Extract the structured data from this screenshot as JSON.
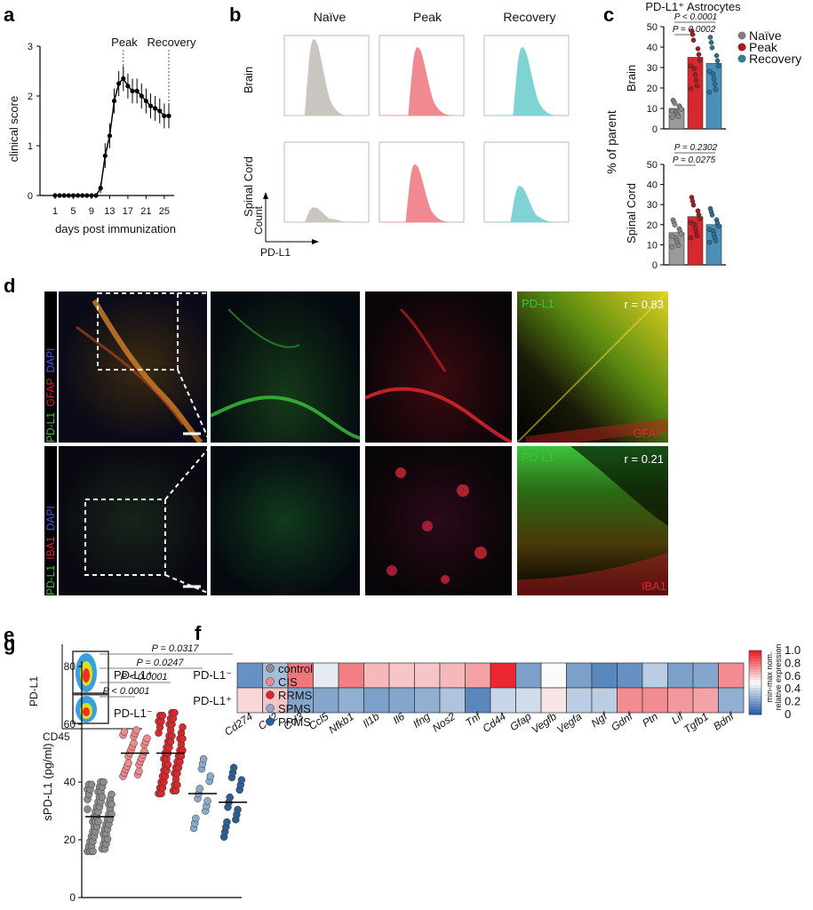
{
  "panel_labels": {
    "a": "a",
    "b": "b",
    "c": "c",
    "d": "d",
    "e": "e",
    "f": "f",
    "g": "g"
  },
  "panel_a": {
    "ylabel": "clinical score",
    "xlabel": "days post immunization",
    "annot_peak": "Peak",
    "annot_recovery": "Recovery",
    "yticks": [
      "0",
      "1",
      "2",
      "3"
    ],
    "xticks": [
      "1",
      "5",
      "9",
      "13",
      "17",
      "21",
      "25"
    ]
  },
  "panel_b": {
    "cols": [
      "Naïve",
      "Peak",
      "Recovery"
    ],
    "rows": [
      "Brain",
      "Spinal Cord"
    ],
    "axis_y": "Count",
    "axis_x": "PD-L1",
    "colors": [
      "#c9c6bf",
      "#f08a90",
      "#7fd3d3"
    ]
  },
  "panel_c": {
    "title": "PD-L1⁺ Astrocytes",
    "ylabel": "% of parent",
    "row_brain": "Brain",
    "row_sc": "Spinal Cord",
    "p_brain_1": "P < 0.0001",
    "p_brain_2": "P = 0.0002",
    "p_sc_1": "P = 0.2302",
    "p_sc_2": "P = 0.0275",
    "legend": [
      {
        "label": "Naïve",
        "color": "#7f7f7f"
      },
      {
        "label": "Peak",
        "color": "#a01d26"
      },
      {
        "label": "Recovery",
        "color": "#2f7f8f"
      }
    ],
    "brain_yticks": [
      "0",
      "10",
      "20",
      "30",
      "40",
      "50"
    ],
    "sc_yticks": [
      "0",
      "10",
      "20",
      "30",
      "40",
      "50"
    ]
  },
  "panel_d": {
    "row1_label_pd": "PD-L1",
    "row1_label_gfap": "GFAP",
    "row1_label_dapi": "DAPI",
    "row2_label_pd": "PD-L1",
    "row2_label_iba": "IBA1",
    "row2_label_dapi": "DAPI",
    "scatter1_y": "PD-L1",
    "scatter1_x": "GFAP",
    "scatter1_r": "r = 0.83",
    "scatter2_y": "PD-L1",
    "scatter2_x": "IBA1",
    "scatter2_r": "r = 0.21"
  },
  "panel_e": {
    "gate_pos": "PD-L1⁺",
    "gate_neg": "PD-L1⁻",
    "ylabel": "PD-L1",
    "xlabel": "CD45"
  },
  "panel_f": {
    "rows": [
      "PD-L1⁻",
      "PD-L1⁺"
    ],
    "genes": [
      "Cd274",
      "Ccl2",
      "Ccl3",
      "Ccl5",
      "Nfkb1",
      "Il1b",
      "Il6",
      "Ifng",
      "Nos2",
      "Tnf",
      "Cd44",
      "Gfap",
      "Vegfb",
      "Vegfa",
      "Ngf",
      "Gdnf",
      "Ptn",
      "Lif",
      "Tgfb1",
      "Bdnf"
    ],
    "values": [
      [
        0.15,
        0.3,
        0.8,
        0.45,
        0.78,
        0.65,
        0.62,
        0.62,
        0.65,
        0.7,
        0.98,
        0.2,
        0.5,
        0.2,
        0.12,
        0.15,
        0.35,
        0.2,
        0.22,
        0.75
      ],
      [
        0.58,
        0.62,
        0.22,
        0.22,
        0.25,
        0.2,
        0.22,
        0.25,
        0.32,
        0.12,
        0.38,
        0.4,
        0.55,
        0.35,
        0.35,
        0.75,
        0.75,
        0.72,
        0.7,
        0.25
      ]
    ],
    "colorbar_label_1": "min-max nom.",
    "colorbar_label_2": "relative expression",
    "colorbar_ticks": [
      "1.0",
      "0.8",
      "0.6",
      "0.4",
      "0.2",
      "0"
    ]
  },
  "chart_data": [
    {
      "type": "line",
      "x": [
        1,
        2,
        3,
        4,
        5,
        6,
        7,
        8,
        9,
        10,
        11,
        12,
        13,
        14,
        15,
        16,
        17,
        18,
        19,
        20,
        21,
        22,
        23,
        24,
        25,
        26
      ],
      "y": [
        0,
        0,
        0,
        0,
        0,
        0,
        0,
        0,
        0,
        0,
        0.15,
        0.8,
        1.2,
        1.9,
        2.25,
        2.35,
        2.2,
        2.1,
        2.1,
        2.0,
        1.9,
        1.8,
        1.75,
        1.7,
        1.6,
        1.6
      ],
      "ylabel": "clinical score",
      "xlabel": "days post immunization",
      "ylim": [
        0,
        3
      ]
    },
    {
      "type": "bar",
      "categories": [
        "Naïve",
        "Peak",
        "Recovery"
      ],
      "series": [
        {
          "name": "Brain",
          "values": [
            10,
            35,
            32
          ]
        },
        {
          "name": "Spinal Cord",
          "values": [
            16,
            24,
            20
          ]
        }
      ],
      "ylabel": "% of parent",
      "ylim": [
        0,
        50
      ]
    },
    {
      "type": "scatter",
      "categories": [
        "control",
        "CIS",
        "RRMS",
        "SPMS",
        "PPMS"
      ],
      "medians": [
        28,
        50,
        50,
        36,
        33
      ],
      "ylabel": "sPD-L1 (pg/ml)",
      "ylim": [
        0,
        80
      ],
      "yticks": [
        "0",
        "20",
        "40",
        "60",
        "80"
      ],
      "p_values": [
        "P < 0.0001",
        "P < 0.0001",
        "P = 0.0247",
        "P = 0.0317"
      ],
      "legend": [
        {
          "label": "control",
          "color": "#8c8c8c"
        },
        {
          "label": "CIS",
          "color": "#f0888c"
        },
        {
          "label": "RRMS",
          "color": "#d7282e"
        },
        {
          "label": "SPMS",
          "color": "#8ba9c9"
        },
        {
          "label": "PPMS",
          "color": "#2f5f92"
        }
      ]
    }
  ]
}
